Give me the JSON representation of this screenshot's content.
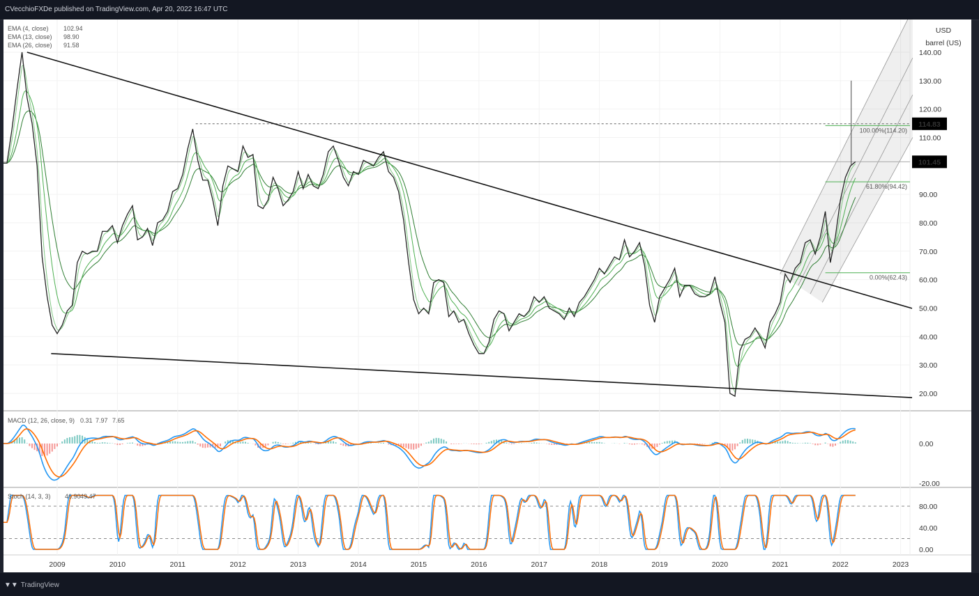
{
  "header": {
    "title": "CVecchioFXDe published on TradingView.com, Apr 20, 2022 16:47 UTC"
  },
  "footer": {
    "brand": "TradingView",
    "brand_icon": "tradingview-logo-icon"
  },
  "colors": {
    "price": "#222222",
    "ema": "#4caf50",
    "macd": "#2196f3",
    "signal": "#ff6d00",
    "hist_up": "#26a69a",
    "hist_down": "#ef5350",
    "fib": "#4caf50"
  },
  "chart_data": {
    "type": "line",
    "price_pane": {
      "unit_label": [
        "USD",
        "barrel (US)"
      ],
      "yticks": [
        140,
        130,
        120,
        110,
        90,
        80,
        70,
        60,
        50,
        40,
        30,
        20
      ],
      "ylim": [
        15,
        155
      ],
      "xlim": [
        2008.1,
        2023.3
      ],
      "xticks": [
        "2009",
        "2010",
        "2011",
        "2012",
        "2013",
        "2014",
        "2015",
        "2016",
        "2017",
        "2018",
        "2019",
        "2020",
        "2021",
        "2022",
        "2023"
      ],
      "legend": [
        {
          "label": "EMA (4, close)",
          "value": "102.94"
        },
        {
          "label": "EMA (13, close)",
          "value": "98.90"
        },
        {
          "label": "EMA (26, close)",
          "value": "91.58"
        }
      ],
      "price_badges": [
        {
          "value": "114.83"
        },
        {
          "value": "101.45"
        }
      ],
      "monthly_close": {
        "2008": [
          null,
          101,
          101,
          113,
          127,
          140,
          124,
          115,
          100,
          68,
          54,
          44
        ],
        "2009": [
          41,
          44,
          49,
          51,
          66,
          70,
          69,
          70,
          70,
          77,
          77,
          79
        ],
        "2010": [
          73,
          79,
          83,
          86,
          74,
          75,
          78,
          72,
          80,
          81,
          84,
          91
        ],
        "2011": [
          92,
          97,
          106,
          113,
          102,
          95,
          95,
          88,
          79,
          93,
          100,
          99
        ],
        "2012": [
          98,
          107,
          103,
          104,
          86,
          85,
          88,
          96,
          92,
          86,
          88,
          91
        ],
        "2013": [
          98,
          92,
          97,
          93,
          92,
          97,
          105,
          107,
          102,
          96,
          93,
          98
        ],
        "2014": [
          97,
          102,
          101,
          100,
          103,
          105,
          98,
          96,
          91,
          81,
          66,
          53
        ],
        "2015": [
          48,
          50,
          48,
          59,
          60,
          59,
          47,
          49,
          45,
          46,
          41,
          37
        ],
        "2016": [
          34,
          34,
          38,
          46,
          49,
          48,
          42,
          45,
          48,
          47,
          49,
          54
        ],
        "2017": [
          52,
          54,
          50,
          49,
          48,
          46,
          50,
          47,
          52,
          54,
          57,
          60
        ],
        "2018": [
          64,
          62,
          65,
          68,
          67,
          74,
          68,
          70,
          73,
          65,
          51,
          45
        ],
        "2019": [
          54,
          57,
          60,
          64,
          54,
          58,
          58,
          55,
          54,
          54,
          55,
          61
        ],
        "2020": [
          52,
          45,
          20,
          19,
          35,
          39,
          40,
          43,
          40,
          36,
          45,
          48
        ],
        "2021": [
          52,
          62,
          59,
          64,
          66,
          73,
          74,
          69,
          75,
          84,
          66,
          75
        ],
        "2022": [
          88,
          96,
          100,
          101.45
        ]
      },
      "trendlines": [
        {
          "from": [
            2008.5,
            140
          ],
          "to": [
            2023.19,
            49.9
          ]
        },
        {
          "from": [
            2008.9,
            34
          ],
          "to": [
            2023.19,
            18.5
          ]
        }
      ],
      "horizontal_levels": [
        {
          "value": 114.83,
          "style": "dotted",
          "from": 2011.3
        },
        {
          "value": 101.45,
          "style": "solid"
        }
      ],
      "fib_levels": [
        {
          "label": "100.00%(114.20)",
          "value": 114.2
        },
        {
          "label": "61.80%(94.42)",
          "value": 94.42
        },
        {
          "label": "0.00%(62.43)",
          "value": 62.43
        }
      ]
    },
    "macd_pane": {
      "legend": {
        "label": "MACD (12, 26, close, 9)",
        "hist": "0.31",
        "macd": "7.97",
        "signal": "7.65"
      },
      "yticks": [
        "0.00",
        "-20.00"
      ]
    },
    "stoch_pane": {
      "legend": {
        "label": "Stoch (14, 3, 3)",
        "k": "46.90",
        "d": "49.47"
      },
      "yticks": [
        "80.00",
        "40.00",
        "0.00"
      ],
      "bands": [
        80,
        20
      ]
    }
  }
}
